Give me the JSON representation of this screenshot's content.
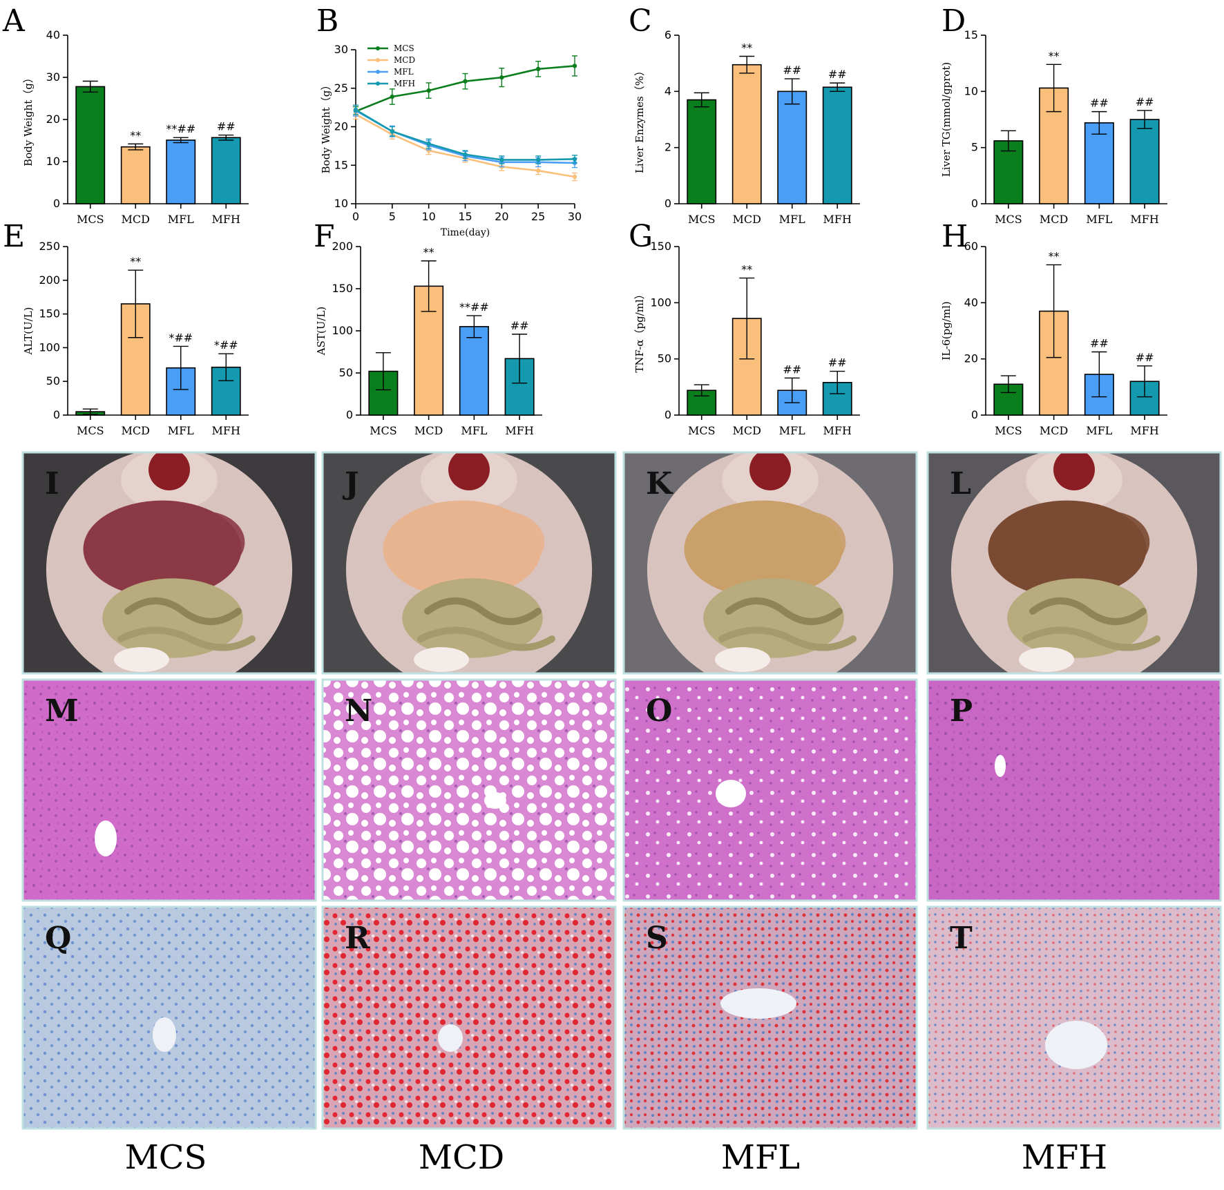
{
  "colors": {
    "MCS": "#0a7d1c",
    "MCD": "#fbbf7c",
    "MFL": "#4a9ef5",
    "MFH": "#1499ae"
  },
  "chart_data": [
    {
      "panel": "A",
      "type": "bar",
      "categories": [
        "MCS",
        "MCD",
        "MFL",
        "MFH"
      ],
      "values": [
        27.8,
        13.5,
        15.1,
        15.7
      ],
      "errors": [
        1.3,
        0.7,
        0.6,
        0.6
      ],
      "annotations": [
        "",
        "**",
        "**##",
        "##"
      ],
      "ylabel": "Body Weight（g）",
      "ylim": [
        0,
        40
      ],
      "yticks": [
        0,
        10,
        20,
        30,
        40
      ]
    },
    {
      "panel": "B",
      "type": "line",
      "x": [
        0,
        5,
        10,
        15,
        20,
        25,
        30
      ],
      "series": [
        {
          "name": "MCS",
          "values": [
            22.0,
            23.9,
            24.7,
            25.9,
            26.4,
            27.5,
            27.9
          ],
          "errors": [
            0.6,
            1.0,
            1.0,
            1.0,
            1.2,
            1.0,
            1.3
          ]
        },
        {
          "name": "MCD",
          "values": [
            21.6,
            19.0,
            16.9,
            15.9,
            14.8,
            14.3,
            13.5
          ],
          "errors": [
            0.6,
            0.6,
            0.5,
            0.5,
            0.5,
            0.5,
            0.5
          ]
        },
        {
          "name": "MFL",
          "values": [
            22.1,
            19.4,
            17.6,
            16.2,
            15.4,
            15.4,
            15.3
          ],
          "errors": [
            0.7,
            0.7,
            0.6,
            0.6,
            0.6,
            0.6,
            0.6
          ]
        },
        {
          "name": "MFH",
          "values": [
            22.2,
            19.4,
            17.8,
            16.4,
            15.7,
            15.7,
            15.8
          ],
          "errors": [
            0.6,
            0.6,
            0.6,
            0.5,
            0.5,
            0.5,
            0.5
          ]
        }
      ],
      "xlabel": "Time(day)",
      "ylabel": "Body Weight（g）",
      "xlim": [
        0,
        30
      ],
      "xticks": [
        0,
        5,
        10,
        15,
        20,
        25,
        30
      ],
      "ylim": [
        10,
        30
      ],
      "yticks": [
        10,
        15,
        20,
        25,
        30
      ],
      "legend": "top-left"
    },
    {
      "panel": "C",
      "type": "bar",
      "categories": [
        "MCS",
        "MCD",
        "MFL",
        "MFH"
      ],
      "values": [
        3.7,
        4.95,
        4.0,
        4.15
      ],
      "errors": [
        0.25,
        0.3,
        0.45,
        0.15
      ],
      "annotations": [
        "",
        "**",
        "##",
        "##"
      ],
      "ylabel": "Liver Enzymes（%）",
      "ylim": [
        0,
        6
      ],
      "yticks": [
        0,
        2,
        4,
        6
      ]
    },
    {
      "panel": "D",
      "type": "bar",
      "categories": [
        "MCS",
        "MCD",
        "MFL",
        "MFH"
      ],
      "values": [
        5.6,
        10.3,
        7.2,
        7.5
      ],
      "errors": [
        0.9,
        2.1,
        1.0,
        0.8
      ],
      "annotations": [
        "",
        "**",
        "##",
        "##"
      ],
      "ylabel": "Liver TG(mmol/gprot)",
      "ylim": [
        0,
        15
      ],
      "yticks": [
        0,
        5,
        10,
        15
      ]
    },
    {
      "panel": "E",
      "type": "bar",
      "categories": [
        "MCS",
        "MCD",
        "MFL",
        "MFH"
      ],
      "values": [
        5,
        165,
        70,
        71
      ],
      "errors": [
        4,
        50,
        32,
        20
      ],
      "annotations": [
        "",
        "**",
        "*##",
        "*##"
      ],
      "ylabel": "ALT(U/L)",
      "ylim": [
        0,
        250
      ],
      "yticks": [
        0,
        50,
        100,
        150,
        200,
        250
      ]
    },
    {
      "panel": "F",
      "type": "bar",
      "categories": [
        "MCS",
        "MCD",
        "MFL",
        "MFH"
      ],
      "values": [
        52,
        153,
        105,
        67
      ],
      "errors": [
        22,
        30,
        13,
        29
      ],
      "annotations": [
        "",
        "**",
        "**##",
        "##"
      ],
      "ylabel": "AST(U/L)",
      "ylim": [
        0,
        200
      ],
      "yticks": [
        0,
        50,
        100,
        150,
        200
      ]
    },
    {
      "panel": "G",
      "type": "bar",
      "categories": [
        "MCS",
        "MCD",
        "MFL",
        "MFH"
      ],
      "values": [
        22,
        86,
        22,
        29
      ],
      "errors": [
        5,
        36,
        11,
        10
      ],
      "annotations": [
        "",
        "**",
        "##",
        "##"
      ],
      "ylabel": "TNF-α（pg/ml）",
      "ylim": [
        0,
        150
      ],
      "yticks": [
        0,
        50,
        100,
        150
      ]
    },
    {
      "panel": "H",
      "type": "bar",
      "categories": [
        "MCS",
        "MCD",
        "MFL",
        "MFH"
      ],
      "values": [
        11,
        37,
        14.5,
        12
      ],
      "errors": [
        3,
        16.5,
        8,
        5.5
      ],
      "annotations": [
        "",
        "**",
        "##",
        "##"
      ],
      "ylabel": "IL-6(pg/ml)",
      "ylim": [
        0,
        60
      ],
      "yticks": [
        0,
        20,
        40,
        60
      ]
    }
  ],
  "photos": {
    "gross": [
      {
        "letter": "I",
        "group": "MCS",
        "liver": "#8b3a45",
        "bg": "#3d3b3e"
      },
      {
        "letter": "J",
        "group": "MCD",
        "liver": "#e8b48f",
        "bg": "#4a4a4c"
      },
      {
        "letter": "K",
        "group": "MFL",
        "liver": "#c9a06a",
        "bg": "#6e6c70"
      },
      {
        "letter": "L",
        "group": "MFH",
        "liver": "#7a4a32",
        "bg": "#5a585c"
      }
    ],
    "he": [
      {
        "letter": "M",
        "tint": "#d06bc9"
      },
      {
        "letter": "N",
        "tint": "#d989d3"
      },
      {
        "letter": "O",
        "tint": "#cf70cb"
      },
      {
        "letter": "P",
        "tint": "#c867c4"
      }
    ],
    "oil_red": [
      {
        "letter": "Q",
        "tint": "#b8c9e0"
      },
      {
        "letter": "R",
        "tint": "#d9a5b5"
      },
      {
        "letter": "S",
        "tint": "#cfa7bd"
      },
      {
        "letter": "T",
        "tint": "#dcbccb"
      }
    ]
  },
  "group_labels": [
    "MCS",
    "MCD",
    "MFL",
    "MFH"
  ]
}
